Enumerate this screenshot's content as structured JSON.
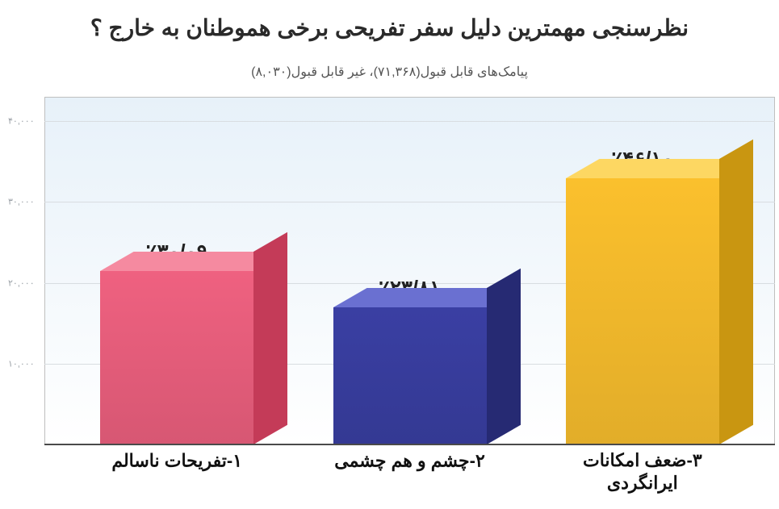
{
  "title": "نظرسنجی مهمترین دلیل سفر تفریحی برخی هموطنان به خارج ؟",
  "subtitle": "پیامک‌های قابل قبول(۷۱,۳۶۸)، غیر قابل قبول(۸,۰۳۰)",
  "chart": {
    "type": "bar",
    "background_gradient_top": "#e7f1f9",
    "background_gradient_bottom": "#ffffff",
    "grid_color": "#d8dde1",
    "axis_color": "#4a4a4a",
    "ylim": [
      0,
      43000
    ],
    "yticks": [
      {
        "value": 10000,
        "label": "۱۰,۰۰۰"
      },
      {
        "value": 20000,
        "label": "۲۰,۰۰۰"
      },
      {
        "value": 30000,
        "label": "۳۰,۰۰۰"
      },
      {
        "value": 40000,
        "label": "۴۰,۰۰۰"
      }
    ],
    "title_fontsize": 28,
    "subtitle_fontsize": 16,
    "value_fontsize": 26,
    "category_fontsize": 22,
    "bars": [
      {
        "category": "۱-تفریحات ناسالم",
        "value_label": "٪۳۰/۰۹",
        "value": 21480,
        "front_color": "#ef6180",
        "top_color": "#f58aa0",
        "side_color": "#c43b58"
      },
      {
        "category": "۲-چشم و هم چشمی",
        "value_label": "٪۲۳/۸۱",
        "value": 16990,
        "front_color": "#3a3fa3",
        "top_color": "#6a70d1",
        "side_color": "#262a73"
      },
      {
        "category": "۳-ضعف امکانات\nایرانگردی",
        "value_label": "٪۴۶/۱۰",
        "value": 32900,
        "front_color": "#fbc02d",
        "top_color": "#fdd762",
        "side_color": "#c99611"
      }
    ]
  }
}
